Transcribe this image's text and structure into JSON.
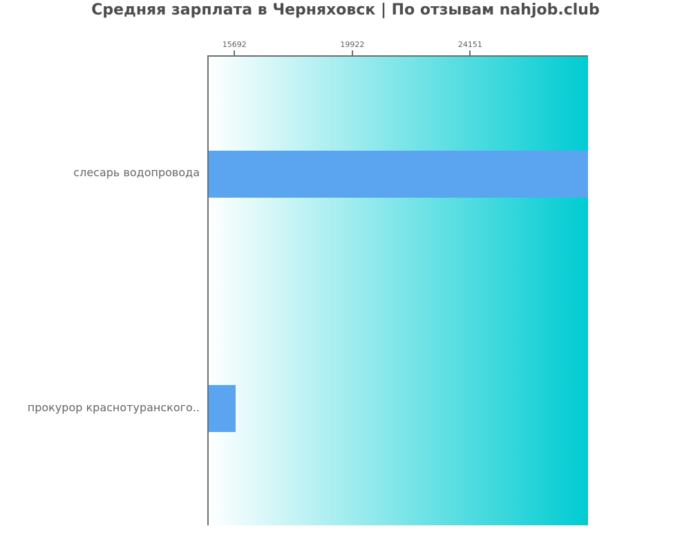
{
  "page": {
    "background": "#ffffff"
  },
  "chart_data": {
    "type": "bar",
    "orientation": "horizontal",
    "title": "Средняя зарплата в Черняховск | По отзывам nahjob.club",
    "categories": [
      "слесарь водопровода",
      "прокурор краснотуранского.."
    ],
    "values": [
      28381,
      15692
    ],
    "xlabel": "",
    "ylabel": "",
    "xlim": [
      14717,
      28381
    ],
    "xticks": [
      15692,
      19922,
      24151
    ],
    "xticks_position": "top",
    "grid": false,
    "legend_position": "none",
    "bar_color": "#5ba5f0",
    "plot_bg_gradient_left": "#ffffff",
    "plot_bg_gradient_right": "#00ccd2",
    "spine_color": "#6e6e6e",
    "title_color": "#4d4d4d",
    "category_label_color": "#666666",
    "tick_label_color": "#5f5f5f"
  }
}
